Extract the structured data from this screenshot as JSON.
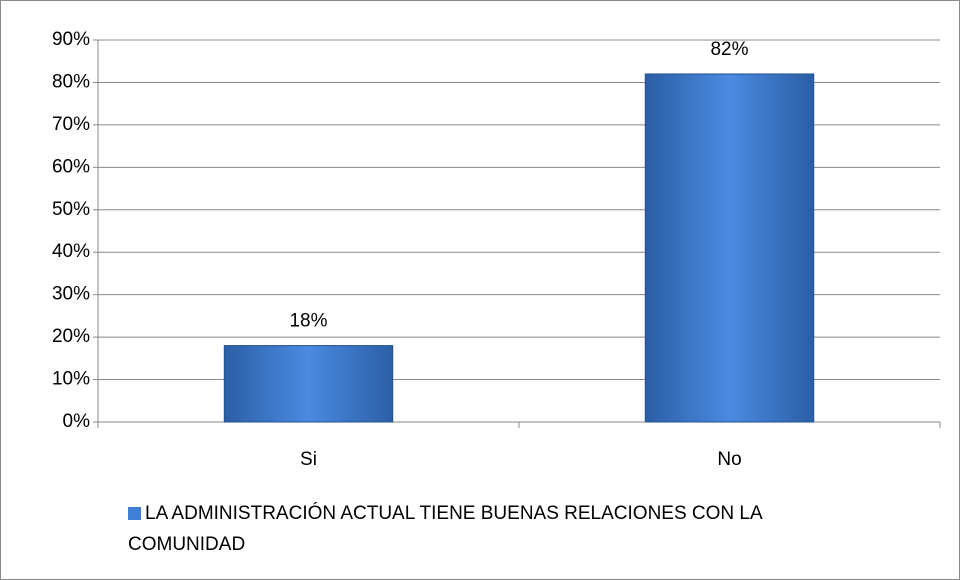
{
  "chart_data": {
    "type": "bar",
    "categories": [
      "Si",
      "No"
    ],
    "series": [
      {
        "name": "LA ADMINISTRACIÓN ACTUAL TIENE BUENAS RELACIONES CON LA COMUNIDAD",
        "color": "#3f7fd4",
        "values": [
          18,
          82
        ],
        "value_labels": [
          "18%",
          "82%"
        ]
      }
    ],
    "ylim": [
      0,
      90
    ],
    "yticks": [
      {
        "value": 0,
        "label": "0%"
      },
      {
        "value": 10,
        "label": "10%"
      },
      {
        "value": 20,
        "label": "20%"
      },
      {
        "value": 30,
        "label": "30%"
      },
      {
        "value": 40,
        "label": "40%"
      },
      {
        "value": 50,
        "label": "50%"
      },
      {
        "value": 60,
        "label": "60%"
      },
      {
        "value": 70,
        "label": "70%"
      },
      {
        "value": 80,
        "label": "80%"
      },
      {
        "value": 90,
        "label": "90%"
      }
    ],
    "grid": true,
    "legend": "bottom"
  }
}
